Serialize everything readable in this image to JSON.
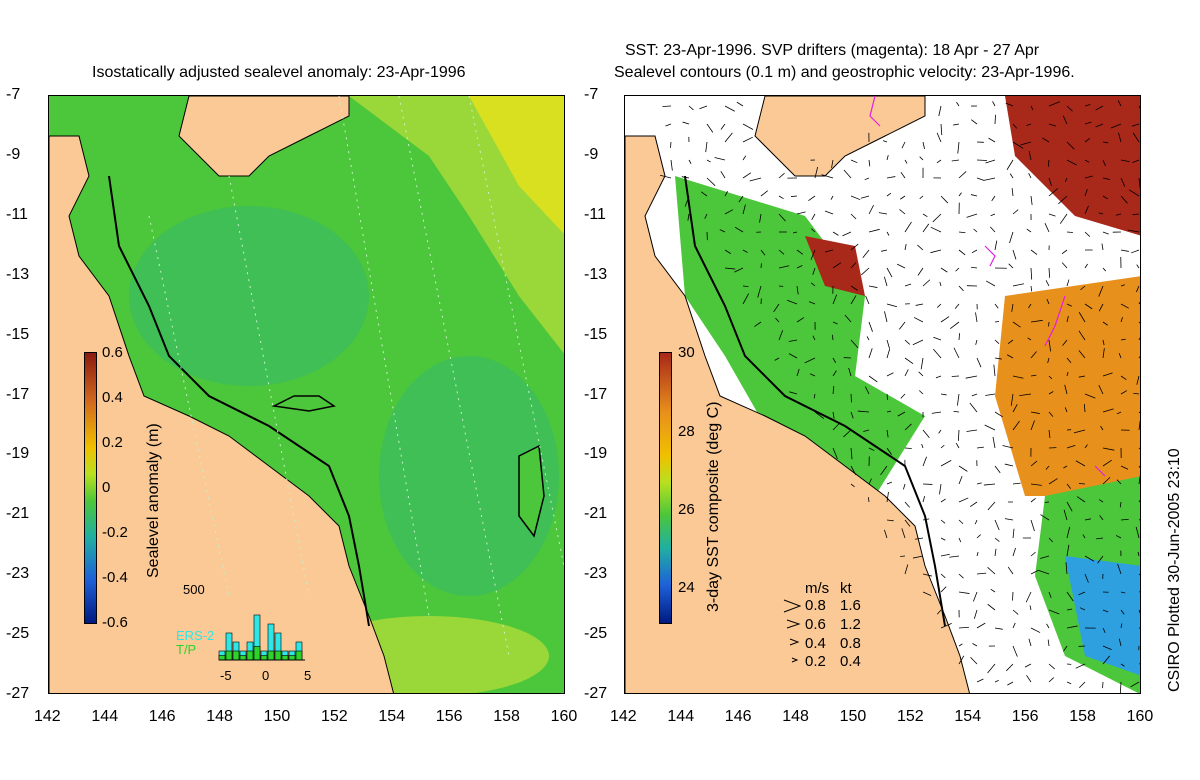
{
  "left": {
    "title": "Isostatically adjusted sealevel anomaly: 23-Apr-1996",
    "colorbar_label": "Sealevel anomaly (m)",
    "colorbar_ticks": [
      "0.6",
      "0.4",
      "0.2",
      "0",
      "-0.2",
      "-0.4",
      "-0.6"
    ],
    "inset": {
      "ytick": "500",
      "xticks": [
        "-5",
        "0",
        "5"
      ],
      "series": [
        {
          "name": "ERS-2",
          "color": "#2ee6e6",
          "values": [
            1,
            3,
            2,
            1,
            2,
            5,
            1,
            4,
            3,
            1,
            1,
            2
          ]
        },
        {
          "name": "T/P",
          "color": "#2bd32b",
          "values": [
            0.5,
            1,
            1,
            0.5,
            1,
            1.5,
            0.5,
            1,
            1,
            0.5,
            0.5,
            1
          ]
        }
      ]
    }
  },
  "right": {
    "title_line1": "SST: 23-Apr-1996. SVP drifters (magenta): 18 Apr - 27 Apr",
    "title_line2": "Sealevel contours (0.1 m) and geostrophic velocity: 23-Apr-1996.",
    "colorbar_label": "3-day SST composite (deg C)",
    "colorbar_ticks": [
      "30",
      "28",
      "26",
      "24"
    ],
    "legend": {
      "header_ms": "m/s",
      "header_kt": "kt",
      "rows": [
        {
          "ms": "0.8",
          "kt": "1.6"
        },
        {
          "ms": "0.6",
          "kt": "1.2"
        },
        {
          "ms": "0.4",
          "kt": "0.8"
        },
        {
          "ms": "0.2",
          "kt": "0.4"
        }
      ]
    }
  },
  "axes": {
    "y_ticks": [
      "-7",
      "-9",
      "-11",
      "-13",
      "-15",
      "-17",
      "-19",
      "-21",
      "-23",
      "-25",
      "-27"
    ],
    "x_ticks": [
      "142",
      "144",
      "146",
      "148",
      "150",
      "152",
      "154",
      "156",
      "158",
      "160"
    ]
  },
  "footer": "CSIRO Plotted 30-Jun-2005 23:10",
  "colors": {
    "land": "#fbc995",
    "sea_green": "#4cc63a",
    "sea_light": "#8fd93b",
    "sea_yellow": "#d8e020",
    "sst_orange": "#e8901c",
    "sst_red": "#a8281a",
    "cloud_white": "#ffffff"
  }
}
